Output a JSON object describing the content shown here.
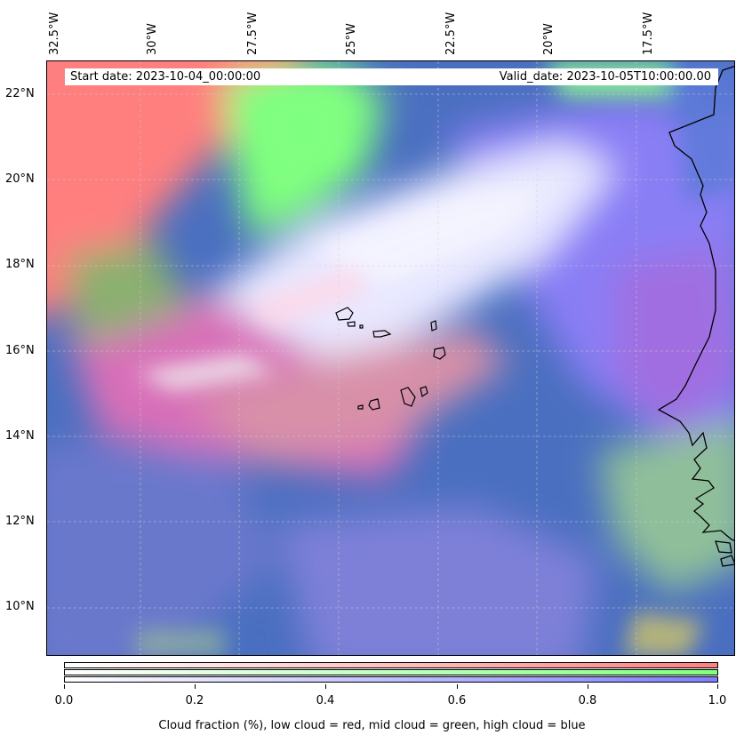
{
  "map": {
    "start_date": "Start date: 2023-10-04_00:00:00",
    "valid_date": "Valid_date: 2023-10-05T10:00:00.00",
    "lon_labels": [
      "32.5°W",
      "30°W",
      "27.5°W",
      "25°W",
      "22.5°W",
      "20°W",
      "17.5°W"
    ],
    "lat_labels": [
      "22°N",
      "20°N",
      "18°N",
      "16°N",
      "14°N",
      "12°N",
      "10°N"
    ],
    "colors": {
      "low_cloud": "#ff7f7f",
      "mid_cloud": "#7fff7f",
      "high_cloud": "#7f7fff"
    }
  },
  "colorbar": {
    "ticks": [
      "0.0",
      "0.2",
      "0.4",
      "0.6",
      "0.8",
      "1.0"
    ],
    "label": "Cloud fraction (%), low cloud = red, mid cloud = green, high cloud = blue"
  }
}
